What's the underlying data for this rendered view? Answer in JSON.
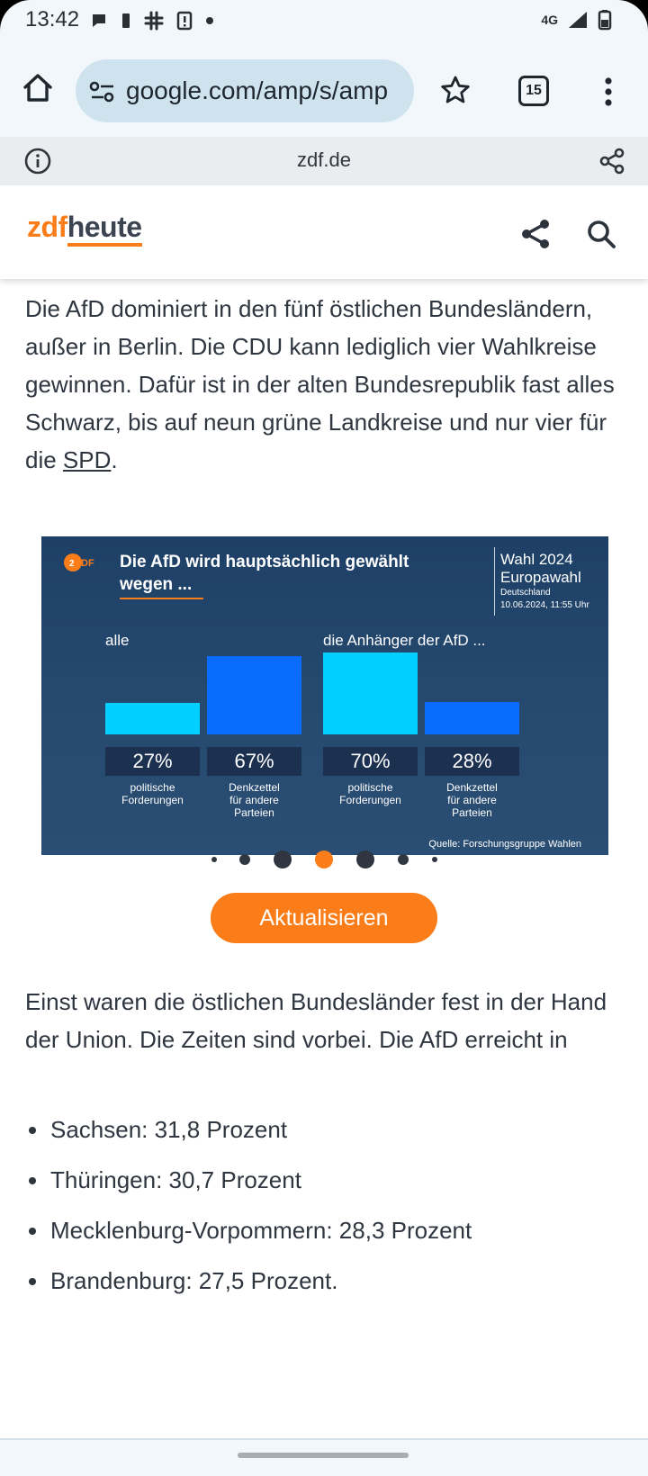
{
  "status": {
    "time": "13:42",
    "network": "4G"
  },
  "browser": {
    "url": "google.com/amp/s/amp",
    "tab_count": "15",
    "site_domain": "zdf.de"
  },
  "site": {
    "logo_zdf": "zdf",
    "logo_heute": "heute",
    "brand_color": "#fa7d19"
  },
  "article": {
    "para1_text": "Die AfD dominiert in den fünf östlichen Bundesländern, außer in Berlin. Die CDU kann lediglich vier Wahlkreise gewinnen. Dafür ist in der alten Bundesrepublik fast alles Schwarz, bis auf neun grüne Landkreise und nur vier für die ",
    "para1_link": "SPD",
    "para1_end": ".",
    "para2": "Einst waren die östlichen Bundesländer fest in der Hand der Union. Die Zeiten sind vorbei. Die AfD erreicht in",
    "bullets": [
      "Sachsen: 31,8 Prozent",
      "Thüringen: 30,7 Prozent",
      "Mecklenburg-Vorpommern: 28,3 Prozent",
      "Brandenburg: 27,5 Prozent."
    ],
    "refresh_button": "Aktualisieren"
  },
  "carousel": {
    "dot_count": 7,
    "active_index": 3
  },
  "chart_data": {
    "type": "bar",
    "title": "Die AfD wird hauptsächlich gewählt wegen ...",
    "election_title": "Wahl 2024",
    "election_subtitle": "Europawahl",
    "region": "Deutschland",
    "timestamp": "10.06.2024, 11:55 Uhr",
    "source": "Quelle: Forschungsgruppe Wahlen",
    "groups": [
      "alle",
      "die Anhänger der AfD ..."
    ],
    "categories": [
      "politische Forderungen",
      "Denkzettel für andere Parteien"
    ],
    "category_labels": [
      [
        "politische",
        "Forderungen"
      ],
      [
        "Denkzettel",
        "für andere",
        "Parteien"
      ]
    ],
    "series": [
      {
        "name": "alle",
        "values": [
          27,
          67
        ]
      },
      {
        "name": "die Anhänger der AfD ...",
        "values": [
          70,
          28
        ]
      }
    ],
    "value_labels": [
      [
        "27%",
        "67%"
      ],
      [
        "70%",
        "28%"
      ]
    ],
    "unit": "%",
    "ylim": [
      0,
      100
    ],
    "colors": {
      "politische": "#00d0ff",
      "denkzettel": "#0a6cff"
    },
    "grid": false
  }
}
